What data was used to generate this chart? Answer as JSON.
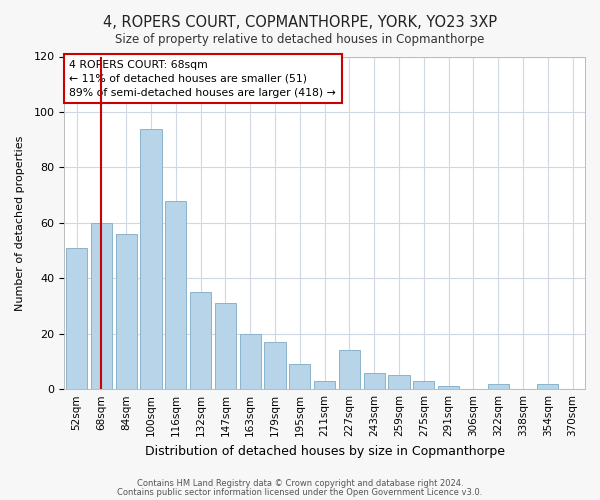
{
  "title": "4, ROPERS COURT, COPMANTHORPE, YORK, YO23 3XP",
  "subtitle": "Size of property relative to detached houses in Copmanthorpe",
  "xlabel": "Distribution of detached houses by size in Copmanthorpe",
  "ylabel": "Number of detached properties",
  "bar_color": "#b8d4e8",
  "bar_edge_color": "#8ab4cc",
  "categories": [
    "52sqm",
    "68sqm",
    "84sqm",
    "100sqm",
    "116sqm",
    "132sqm",
    "147sqm",
    "163sqm",
    "179sqm",
    "195sqm",
    "211sqm",
    "227sqm",
    "243sqm",
    "259sqm",
    "275sqm",
    "291sqm",
    "306sqm",
    "322sqm",
    "338sqm",
    "354sqm",
    "370sqm"
  ],
  "values": [
    51,
    60,
    56,
    94,
    68,
    35,
    31,
    20,
    17,
    9,
    3,
    14,
    6,
    5,
    3,
    1,
    0,
    2,
    0,
    2,
    0
  ],
  "ylim": [
    0,
    120
  ],
  "yticks": [
    0,
    20,
    40,
    60,
    80,
    100,
    120
  ],
  "vline_x_index": 1,
  "vline_color": "#cc0000",
  "annotation_title": "4 ROPERS COURT: 68sqm",
  "annotation_line1": "← 11% of detached houses are smaller (51)",
  "annotation_line2": "89% of semi-detached houses are larger (418) →",
  "annotation_box_color": "#ffffff",
  "annotation_box_edge": "#cc0000",
  "footer1": "Contains HM Land Registry data © Crown copyright and database right 2024.",
  "footer2": "Contains public sector information licensed under the Open Government Licence v3.0.",
  "background_color": "#f7f7f7",
  "plot_bg_color": "#ffffff",
  "grid_color": "#d0d8e4"
}
